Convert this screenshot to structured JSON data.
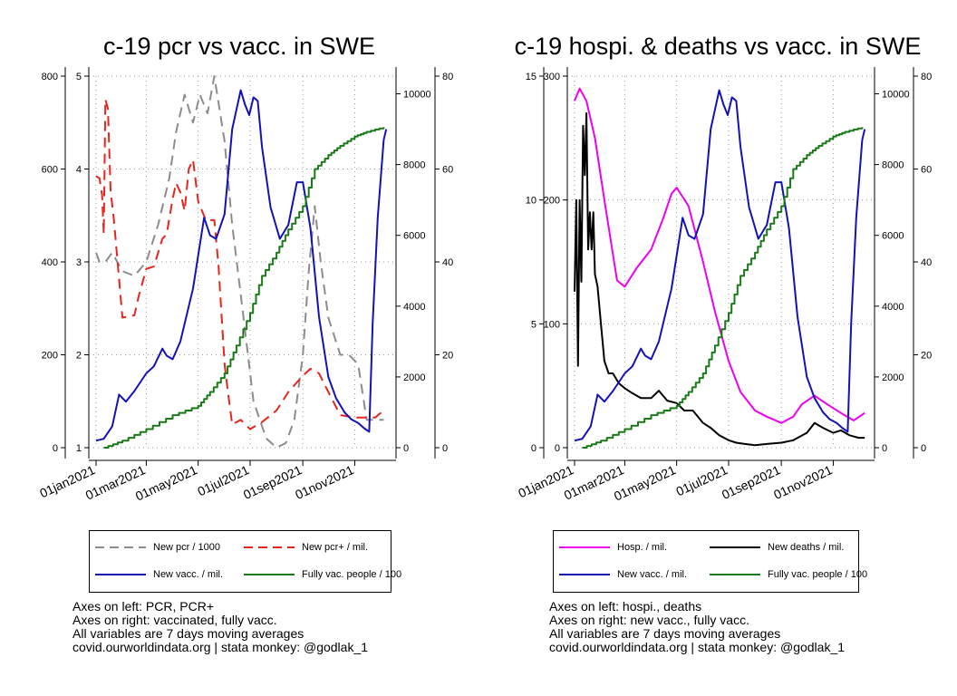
{
  "chart_data": [
    {
      "type": "line",
      "title": "c-19 pcr vs vacc. in SWE",
      "x_ticks": [
        "01jan2021",
        "01mar2021",
        "01may2021",
        "01jul2021",
        "01sep2021",
        "01nov2021"
      ],
      "xlim": [
        "2021-01-01",
        "2021-12-11"
      ],
      "axes": {
        "left_outer": {
          "ticks": [
            0,
            200,
            400,
            600,
            800
          ],
          "ylim": [
            0,
            800
          ]
        },
        "left_inner": {
          "ticks": [
            1,
            2,
            3,
            4,
            5
          ],
          "ylim": [
            1,
            5
          ]
        },
        "right_inner": {
          "ticks": [
            0,
            2000,
            4000,
            6000,
            8000,
            10000
          ],
          "ylim": [
            0,
            10500
          ]
        },
        "right_outer": {
          "ticks": [
            0,
            20,
            40,
            60,
            80
          ],
          "ylim": [
            0,
            80
          ]
        }
      },
      "grid": true,
      "series": [
        {
          "name": "New pcr / 1000",
          "axis": "left_inner",
          "color": "#8c8c8c",
          "dash": "dashed",
          "x": [
            "2021-01-01",
            "2021-01-05",
            "2021-01-12",
            "2021-01-20",
            "2021-02-01",
            "2021-02-15",
            "2021-03-01",
            "2021-03-15",
            "2021-03-28",
            "2021-04-05",
            "2021-04-15",
            "2021-04-25",
            "2021-05-03",
            "2021-05-12",
            "2021-05-20",
            "2021-06-01",
            "2021-06-10",
            "2021-06-22",
            "2021-07-05",
            "2021-07-20",
            "2021-08-01",
            "2021-08-12",
            "2021-08-22",
            "2021-09-01",
            "2021-09-08",
            "2021-09-15",
            "2021-09-22",
            "2021-10-01",
            "2021-10-15",
            "2021-10-25",
            "2021-11-05",
            "2021-11-15",
            "2021-11-20",
            "2021-12-05"
          ],
          "y": [
            3.1,
            3.0,
            3.0,
            3.1,
            2.9,
            2.85,
            3.0,
            3.4,
            3.9,
            4.4,
            4.8,
            4.5,
            4.8,
            4.6,
            5.0,
            4.3,
            3.4,
            2.5,
            1.5,
            1.1,
            1.0,
            1.05,
            1.3,
            2.0,
            2.9,
            3.6,
            3.0,
            2.4,
            2.0,
            2.0,
            1.9,
            1.3,
            1.3,
            1.3
          ]
        },
        {
          "name": "New pcr+ / mil.",
          "axis": "left_outer",
          "color": "#e8251c",
          "dash": "dashed",
          "x": [
            "2021-01-01",
            "2021-01-05",
            "2021-01-08",
            "2021-01-10",
            "2021-01-12",
            "2021-01-15",
            "2021-01-18",
            "2021-01-22",
            "2021-02-01",
            "2021-02-15",
            "2021-02-20",
            "2021-03-01",
            "2021-03-10",
            "2021-03-20",
            "2021-03-25",
            "2021-04-01",
            "2021-04-05",
            "2021-04-10",
            "2021-04-15",
            "2021-04-20",
            "2021-04-25",
            "2021-05-01",
            "2021-05-10",
            "2021-05-20",
            "2021-05-25",
            "2021-05-28",
            "2021-06-01",
            "2021-06-05",
            "2021-06-10",
            "2021-06-20",
            "2021-07-01",
            "2021-07-15",
            "2021-08-01",
            "2021-08-15",
            "2021-09-01",
            "2021-09-10",
            "2021-09-20",
            "2021-10-01",
            "2021-10-15",
            "2021-11-01",
            "2021-11-15",
            "2021-11-25",
            "2021-12-05"
          ],
          "y": [
            585,
            580,
            545,
            460,
            750,
            730,
            555,
            490,
            280,
            285,
            325,
            385,
            390,
            450,
            460,
            535,
            570,
            550,
            510,
            600,
            620,
            530,
            490,
            490,
            390,
            300,
            180,
            120,
            50,
            60,
            40,
            55,
            80,
            120,
            155,
            170,
            160,
            120,
            70,
            65,
            65,
            65,
            80
          ]
        },
        {
          "name": "New vacc. / mil.",
          "axis": "right_inner",
          "color": "#1212b8",
          "dash": "solid",
          "x": [
            "2021-01-01",
            "2021-01-10",
            "2021-01-20",
            "2021-01-28",
            "2021-02-05",
            "2021-02-15",
            "2021-03-01",
            "2021-03-10",
            "2021-03-20",
            "2021-03-25",
            "2021-04-01",
            "2021-04-10",
            "2021-04-25",
            "2021-05-08",
            "2021-05-15",
            "2021-05-22",
            "2021-06-01",
            "2021-06-10",
            "2021-06-20",
            "2021-06-25",
            "2021-06-30",
            "2021-07-05",
            "2021-07-10",
            "2021-07-15",
            "2021-07-25",
            "2021-08-05",
            "2021-08-15",
            "2021-08-25",
            "2021-09-01",
            "2021-09-10",
            "2021-09-20",
            "2021-10-01",
            "2021-10-10",
            "2021-10-20",
            "2021-10-28",
            "2021-11-05",
            "2021-11-12",
            "2021-11-18",
            "2021-11-22",
            "2021-11-28",
            "2021-12-05",
            "2021-12-08"
          ],
          "y": [
            200,
            250,
            600,
            1500,
            1300,
            1600,
            2100,
            2300,
            2800,
            2600,
            2500,
            3000,
            4500,
            6500,
            6000,
            5900,
            6600,
            9000,
            10100,
            9700,
            9400,
            9900,
            9800,
            8500,
            6800,
            5900,
            6300,
            7500,
            7500,
            6200,
            3700,
            2000,
            1400,
            1000,
            800,
            700,
            550,
            450,
            3500,
            6500,
            8700,
            9000
          ]
        },
        {
          "name": "Fully vac. people / 100",
          "axis": "right_outer",
          "color": "#1a7a1a",
          "dash": "solid",
          "x": [
            "2021-01-10",
            "2021-02-01",
            "2021-03-01",
            "2021-04-01",
            "2021-05-01",
            "2021-05-15",
            "2021-06-01",
            "2021-06-15",
            "2021-07-01",
            "2021-07-15",
            "2021-08-01",
            "2021-08-15",
            "2021-09-01",
            "2021-09-15",
            "2021-10-01",
            "2021-10-15",
            "2021-11-01",
            "2021-11-15",
            "2021-12-05"
          ],
          "y": [
            0,
            1.5,
            4,
            7,
            9,
            12,
            16,
            22,
            29,
            37,
            42,
            47,
            52,
            60,
            63,
            65,
            67,
            68,
            69
          ]
        }
      ]
    },
    {
      "type": "line",
      "title": "c-19 hospi. & deaths vs vacc. in SWE",
      "x_ticks": [
        "01jan2021",
        "01mar2021",
        "01may2021",
        "01jul2021",
        "01sep2021",
        "01nov2021"
      ],
      "xlim": [
        "2021-01-01",
        "2021-12-11"
      ],
      "axes": {
        "left_outer": {
          "ticks": [
            0,
            5,
            10,
            15
          ],
          "ylim": [
            0,
            15
          ]
        },
        "left_inner": {
          "ticks": [
            0,
            100,
            200,
            300
          ],
          "ylim": [
            0,
            300
          ]
        },
        "right_inner": {
          "ticks": [
            0,
            2000,
            4000,
            6000,
            8000,
            10000
          ],
          "ylim": [
            0,
            10500
          ]
        },
        "right_outer": {
          "ticks": [
            0,
            20,
            40,
            60,
            80
          ],
          "ylim": [
            0,
            80
          ]
        }
      },
      "grid": true,
      "series": [
        {
          "name": "Hosp. / mil.",
          "axis": "left_inner",
          "color": "#ee00ee",
          "dash": "solid",
          "x": [
            "2021-01-01",
            "2021-01-07",
            "2021-01-15",
            "2021-01-25",
            "2021-02-05",
            "2021-02-20",
            "2021-03-01",
            "2021-03-15",
            "2021-04-01",
            "2021-04-15",
            "2021-04-25",
            "2021-05-01",
            "2021-05-15",
            "2021-06-01",
            "2021-06-15",
            "2021-07-01",
            "2021-07-15",
            "2021-08-01",
            "2021-08-15",
            "2021-09-01",
            "2021-09-15",
            "2021-09-25",
            "2021-10-10",
            "2021-10-25",
            "2021-11-10",
            "2021-11-25",
            "2021-12-08"
          ],
          "y": [
            280,
            290,
            280,
            250,
            200,
            135,
            130,
            145,
            160,
            185,
            205,
            210,
            195,
            150,
            110,
            70,
            45,
            30,
            25,
            20,
            25,
            35,
            42,
            35,
            28,
            22,
            28
          ]
        },
        {
          "name": "New deaths / mil.",
          "axis": "left_outer",
          "color": "#000000",
          "dash": "solid",
          "x": [
            "2021-01-01",
            "2021-01-03",
            "2021-01-05",
            "2021-01-07",
            "2021-01-09",
            "2021-01-11",
            "2021-01-13",
            "2021-01-15",
            "2021-01-17",
            "2021-01-19",
            "2021-01-21",
            "2021-01-23",
            "2021-01-25",
            "2021-01-28",
            "2021-02-01",
            "2021-02-05",
            "2021-02-10",
            "2021-02-15",
            "2021-02-22",
            "2021-03-01",
            "2021-03-10",
            "2021-03-20",
            "2021-04-01",
            "2021-04-10",
            "2021-04-20",
            "2021-05-01",
            "2021-05-10",
            "2021-05-20",
            "2021-06-01",
            "2021-06-10",
            "2021-06-20",
            "2021-07-01",
            "2021-07-10",
            "2021-07-20",
            "2021-08-01",
            "2021-08-15",
            "2021-09-01",
            "2021-09-15",
            "2021-10-01",
            "2021-10-10",
            "2021-10-20",
            "2021-11-01",
            "2021-11-10",
            "2021-11-20",
            "2021-12-01",
            "2021-12-08"
          ],
          "y": [
            6.3,
            10,
            3.3,
            10,
            6.7,
            13,
            11,
            13.5,
            8,
            9.5,
            8,
            9.5,
            7,
            6.5,
            5,
            3.5,
            3.0,
            3.0,
            2.6,
            2.4,
            2.2,
            2.0,
            2.0,
            2.3,
            1.9,
            1.8,
            1.5,
            1.5,
            1.0,
            0.8,
            0.5,
            0.3,
            0.2,
            0.15,
            0.1,
            0.15,
            0.2,
            0.3,
            0.6,
            1.0,
            0.8,
            0.6,
            0.7,
            0.5,
            0.4,
            0.4
          ]
        },
        {
          "name": "New vacc. / mil.",
          "axis": "right_inner",
          "color": "#1212b8",
          "dash": "solid",
          "x": [
            "2021-01-01",
            "2021-01-10",
            "2021-01-20",
            "2021-01-28",
            "2021-02-05",
            "2021-02-15",
            "2021-03-01",
            "2021-03-10",
            "2021-03-20",
            "2021-03-25",
            "2021-04-01",
            "2021-04-10",
            "2021-04-25",
            "2021-05-08",
            "2021-05-15",
            "2021-05-22",
            "2021-06-01",
            "2021-06-10",
            "2021-06-20",
            "2021-06-25",
            "2021-06-30",
            "2021-07-05",
            "2021-07-10",
            "2021-07-15",
            "2021-07-25",
            "2021-08-05",
            "2021-08-15",
            "2021-08-25",
            "2021-09-01",
            "2021-09-10",
            "2021-09-20",
            "2021-10-01",
            "2021-10-10",
            "2021-10-20",
            "2021-10-28",
            "2021-11-05",
            "2021-11-12",
            "2021-11-18",
            "2021-11-22",
            "2021-11-28",
            "2021-12-05",
            "2021-12-08"
          ],
          "y": [
            200,
            250,
            600,
            1500,
            1300,
            1600,
            2100,
            2300,
            2800,
            2600,
            2500,
            3000,
            4500,
            6500,
            6000,
            5900,
            6600,
            9000,
            10100,
            9700,
            9400,
            9900,
            9800,
            8500,
            6800,
            5900,
            6300,
            7500,
            7500,
            6200,
            3700,
            2000,
            1400,
            1000,
            800,
            700,
            550,
            450,
            3500,
            6500,
            8700,
            9000
          ]
        },
        {
          "name": "Fully vac. people / 100",
          "axis": "right_outer",
          "color": "#1a7a1a",
          "dash": "solid",
          "x": [
            "2021-01-10",
            "2021-02-01",
            "2021-03-01",
            "2021-04-01",
            "2021-05-01",
            "2021-05-15",
            "2021-06-01",
            "2021-06-15",
            "2021-07-01",
            "2021-07-15",
            "2021-08-01",
            "2021-08-15",
            "2021-09-01",
            "2021-09-15",
            "2021-10-01",
            "2021-10-15",
            "2021-11-01",
            "2021-11-15",
            "2021-12-05"
          ],
          "y": [
            0,
            1.5,
            4,
            7,
            9,
            12,
            16,
            22,
            29,
            37,
            42,
            47,
            52,
            60,
            63,
            65,
            67,
            68,
            69
          ]
        }
      ]
    }
  ],
  "legends": [
    [
      {
        "label": "New pcr / 1000",
        "color": "#8c8c8c",
        "dash": "dashed"
      },
      {
        "label": "New pcr+ / mil.",
        "color": "#e8251c",
        "dash": "dashed"
      },
      {
        "label": "New vacc. / mil.",
        "color": "#1212b8",
        "dash": "solid"
      },
      {
        "label": "Fully vac. people / 100",
        "color": "#1a7a1a",
        "dash": "solid"
      }
    ],
    [
      {
        "label": "Hosp. / mil.",
        "color": "#ee00ee",
        "dash": "solid"
      },
      {
        "label": "New deaths / mil.",
        "color": "#000000",
        "dash": "solid"
      },
      {
        "label": "New vacc. / mil.",
        "color": "#1212b8",
        "dash": "solid"
      },
      {
        "label": "Fully vac. people / 100",
        "color": "#1a7a1a",
        "dash": "solid"
      }
    ]
  ],
  "notes": [
    [
      "Axes on left: PCR, PCR+",
      "Axes on right: vaccinated, fully vacc.",
      "All variables are 7 days moving averages",
      "covid.ourworldindata.org | stata monkey: @godlak_1"
    ],
    [
      "Axes on left: hospi., deaths",
      "Axes on right: new vacc., fully vacc.",
      "All variables are 7 days moving averages",
      "covid.ourworldindata.org | stata monkey: @godlak_1"
    ]
  ]
}
